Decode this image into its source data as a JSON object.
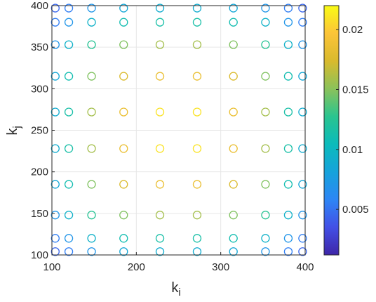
{
  "chart_data": {
    "type": "scatter",
    "title": "",
    "xlabel_main": "k",
    "xlabel_sub": "i",
    "ylabel_main": "k",
    "ylabel_sub": "j",
    "xlim": [
      100,
      400
    ],
    "ylim": [
      100,
      400
    ],
    "xticks": [
      100,
      200,
      300,
      400
    ],
    "yticks": [
      100,
      150,
      200,
      250,
      300,
      350,
      400
    ],
    "grid": true,
    "marker": "open-circle",
    "colormap": "parula",
    "colorbar": {
      "range": [
        0.0012,
        0.022
      ],
      "ticks": [
        0.005,
        0.01,
        0.015,
        0.02
      ],
      "tick_labels": [
        "0.005",
        "0.01",
        "0.015",
        "0.02"
      ],
      "stops": [
        "#3e26a8",
        "#4350e6",
        "#2d86f5",
        "#16a3db",
        "#0bbbbb",
        "#2ac48f",
        "#8bc25a",
        "#d9ba2d",
        "#fcc438",
        "#f9fb15"
      ]
    },
    "grid_x": [
      104,
      120,
      147,
      185,
      228,
      272,
      315,
      353,
      380,
      397
    ],
    "grid_y": [
      104,
      120,
      148,
      185,
      228,
      272,
      315,
      353,
      380,
      397
    ],
    "values_by_row": [
      [
        0.0045,
        0.0055,
        0.007,
        0.0085,
        0.009,
        0.009,
        0.0085,
        0.007,
        0.0055,
        0.0045
      ],
      [
        0.0055,
        0.007,
        0.0095,
        0.011,
        0.0115,
        0.0115,
        0.011,
        0.0095,
        0.007,
        0.0055
      ],
      [
        0.007,
        0.0095,
        0.0125,
        0.0148,
        0.0158,
        0.0158,
        0.0148,
        0.0125,
        0.0095,
        0.007
      ],
      [
        0.0085,
        0.011,
        0.0148,
        0.0175,
        0.0185,
        0.0185,
        0.0175,
        0.0148,
        0.011,
        0.0085
      ],
      [
        0.009,
        0.0115,
        0.0158,
        0.0185,
        0.021,
        0.021,
        0.0185,
        0.0158,
        0.0115,
        0.009
      ],
      [
        0.009,
        0.0115,
        0.0158,
        0.0185,
        0.021,
        0.021,
        0.0185,
        0.0158,
        0.0115,
        0.009
      ],
      [
        0.0085,
        0.011,
        0.0148,
        0.0175,
        0.0185,
        0.0185,
        0.0175,
        0.0148,
        0.011,
        0.0085
      ],
      [
        0.007,
        0.0095,
        0.0125,
        0.0148,
        0.0158,
        0.0158,
        0.0148,
        0.0125,
        0.0095,
        0.007
      ],
      [
        0.0055,
        0.007,
        0.0095,
        0.011,
        0.0115,
        0.0115,
        0.011,
        0.0095,
        0.007,
        0.0055
      ],
      [
        0.0045,
        0.0055,
        0.007,
        0.0085,
        0.009,
        0.009,
        0.0085,
        0.007,
        0.0055,
        0.0045
      ]
    ]
  }
}
